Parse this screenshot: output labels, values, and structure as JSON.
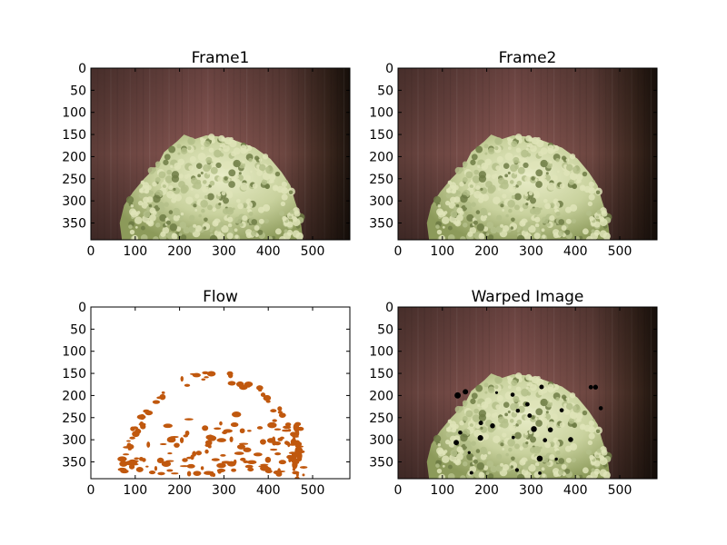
{
  "chart_data": [
    {
      "type": "image",
      "title": "Frame1",
      "content": "hydrangea",
      "xlim": [
        0,
        584
      ],
      "ylim": [
        388,
        0
      ],
      "xticks": [
        0,
        100,
        200,
        300,
        400,
        500
      ],
      "yticks": [
        0,
        50,
        100,
        150,
        200,
        250,
        300,
        350
      ]
    },
    {
      "type": "image",
      "title": "Frame2",
      "content": "hydrangea",
      "xlim": [
        0,
        584
      ],
      "ylim": [
        388,
        0
      ],
      "xticks": [
        0,
        100,
        200,
        300,
        400,
        500
      ],
      "yticks": [
        0,
        50,
        100,
        150,
        200,
        250,
        300,
        350
      ]
    },
    {
      "type": "image",
      "title": "Flow",
      "content": "flow-mask",
      "xlim": [
        0,
        584
      ],
      "ylim": [
        388,
        0
      ],
      "xticks": [
        0,
        100,
        200,
        300,
        400,
        500
      ],
      "yticks": [
        0,
        50,
        100,
        150,
        200,
        250,
        300,
        350
      ],
      "colors": {
        "flow": "#c0580e",
        "background": "#ffffff"
      }
    },
    {
      "type": "image",
      "title": "Warped Image",
      "content": "hydrangea-warped",
      "xlim": [
        0,
        584
      ],
      "ylim": [
        388,
        0
      ],
      "xticks": [
        0,
        100,
        200,
        300,
        400,
        500
      ],
      "yticks": [
        0,
        50,
        100,
        150,
        200,
        250,
        300,
        350
      ]
    }
  ],
  "colors": {
    "wall": "#7b4f4b",
    "wall_dark": "#2a1c14",
    "flower_light": "#dfe4b8",
    "flower_mid": "#b4c089",
    "flower_dark": "#6f7d45",
    "flow": "#c0580e"
  }
}
